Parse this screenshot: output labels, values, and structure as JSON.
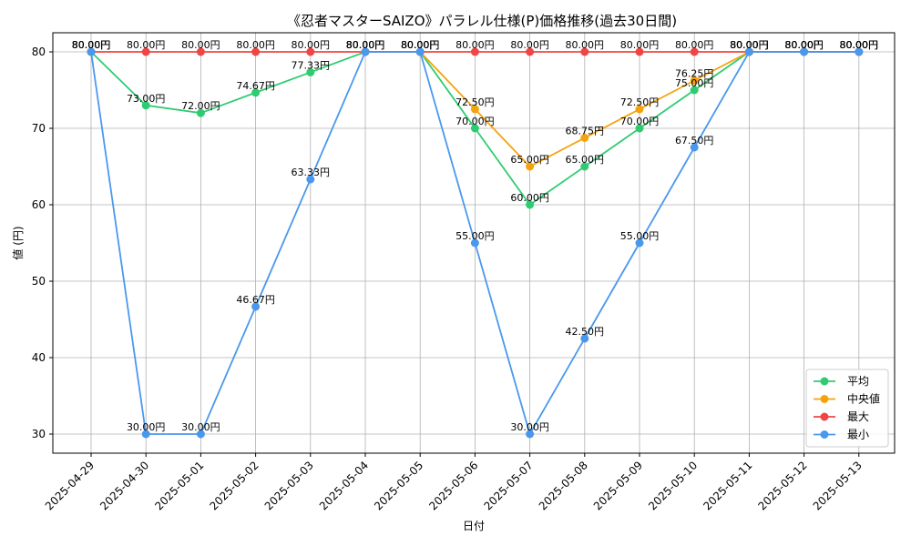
{
  "chart_data": {
    "type": "line",
    "title": "《忍者マスターSAIZO》パラレル仕様(P)価格推移(過去30日間)",
    "xlabel": "日付",
    "ylabel": "値 (円)",
    "ylim": [
      27.5,
      82.5
    ],
    "yticks": [
      30,
      40,
      50,
      60,
      70,
      80
    ],
    "grid": true,
    "legend_position": "bottom-right",
    "label_suffix": "円",
    "categories": [
      "2025-04-29",
      "2025-04-30",
      "2025-05-01",
      "2025-05-02",
      "2025-05-03",
      "2025-05-04",
      "2025-05-05",
      "2025-05-06",
      "2025-05-07",
      "2025-05-08",
      "2025-05-09",
      "2025-05-10",
      "2025-05-11",
      "2025-05-12",
      "2025-05-13"
    ],
    "series": [
      {
        "name": "平均",
        "color": "#2ecc71",
        "values": [
          80,
          73,
          72,
          74.67,
          77.33,
          80,
          80,
          70,
          60,
          65,
          70,
          75,
          80,
          80,
          80
        ]
      },
      {
        "name": "中央値",
        "color": "#f5a30b",
        "values": [
          80,
          null,
          null,
          null,
          null,
          80,
          80,
          72.5,
          65,
          68.75,
          72.5,
          76.25,
          80,
          80,
          80
        ]
      },
      {
        "name": "最大",
        "color": "#f04545",
        "values": [
          80,
          80,
          80,
          80,
          80,
          80,
          80,
          80,
          80,
          80,
          80,
          80,
          80,
          80,
          80
        ]
      },
      {
        "name": "最小",
        "color": "#4a98ee",
        "values": [
          80,
          30,
          30,
          46.67,
          63.33,
          80,
          80,
          55,
          30,
          42.5,
          55,
          67.5,
          80,
          80,
          80
        ]
      }
    ]
  }
}
